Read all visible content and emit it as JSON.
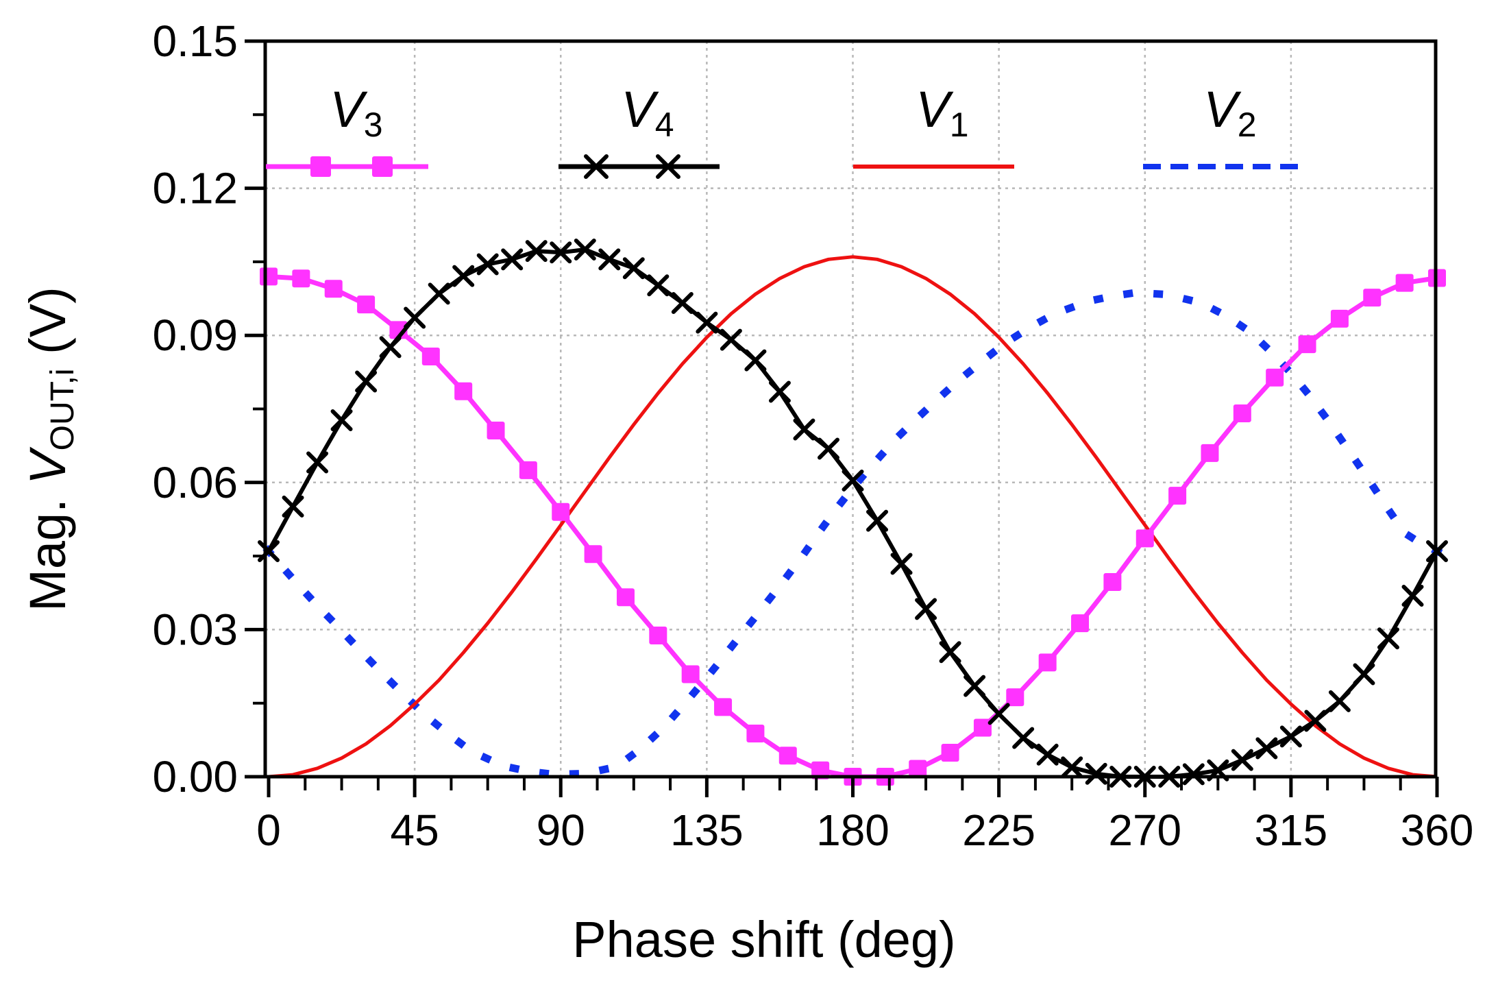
{
  "chart_data": {
    "type": "line",
    "title": "",
    "xlabel": "Phase shift (deg)",
    "ylabel": {
      "prefix": "Mag. ",
      "var": "V",
      "sub": "OUT,i",
      "suffix": " (V)"
    },
    "xlim": [
      0,
      360
    ],
    "ylim": [
      0,
      0.15
    ],
    "xticks": [
      0,
      45,
      90,
      135,
      180,
      225,
      270,
      315,
      360
    ],
    "xtick_labels": [
      "0",
      "45",
      "90",
      "135",
      "180",
      "225",
      "270",
      "315",
      "360"
    ],
    "yticks": [
      0,
      0.03,
      0.06,
      0.09,
      0.12,
      0.15
    ],
    "ytick_labels": [
      "0.00",
      "0.03",
      "0.06",
      "0.09",
      "0.12",
      "0.15"
    ],
    "grid": true,
    "legend_placement": "top, horizontal inside plot",
    "series": [
      {
        "name": "V3",
        "label_main": "V",
        "label_sub": "3",
        "color": "#ff33ff",
        "style": "solid",
        "marker": "square",
        "x": [
          0,
          10,
          20,
          30,
          40,
          50,
          60,
          70,
          80,
          90,
          100,
          110,
          120,
          130,
          140,
          150,
          160,
          170,
          180,
          190,
          200,
          210,
          220,
          230,
          240,
          250,
          260,
          270,
          280,
          290,
          300,
          310,
          320,
          330,
          340,
          350,
          360
        ],
        "values": [
          0.102,
          0.1016,
          0.0995,
          0.0963,
          0.0911,
          0.0857,
          0.0786,
          0.0706,
          0.0625,
          0.054,
          0.0454,
          0.0366,
          0.0288,
          0.0209,
          0.0142,
          0.0088,
          0.0043,
          0.0013,
          0.0,
          0.0,
          0.0016,
          0.0049,
          0.01,
          0.0162,
          0.0233,
          0.0313,
          0.0397,
          0.0486,
          0.0573,
          0.066,
          0.0741,
          0.0814,
          0.0882,
          0.0934,
          0.0977,
          0.1007,
          0.1017
        ]
      },
      {
        "name": "V4",
        "label_main": "V",
        "label_sub": "4",
        "color": "#000000",
        "style": "solid",
        "marker": "x",
        "x": [
          0,
          7.5,
          15,
          22.5,
          30,
          37.5,
          45,
          52.5,
          60,
          67.5,
          75,
          82.5,
          90,
          97.5,
          105,
          112.5,
          120,
          127.5,
          135,
          142.5,
          150,
          157.5,
          165,
          172.5,
          180,
          187.5,
          195,
          202.5,
          210,
          217.5,
          225,
          232.5,
          240,
          247.5,
          255,
          262.5,
          270,
          277.5,
          285,
          292.5,
          300,
          307.5,
          315,
          322.5,
          330,
          337.5,
          345,
          352.5,
          360
        ],
        "values": [
          0.046,
          0.0551,
          0.0641,
          0.0727,
          0.0806,
          0.0876,
          0.0936,
          0.0985,
          0.1021,
          0.1045,
          0.1055,
          0.1072,
          0.1069,
          0.1075,
          0.1055,
          0.1037,
          0.1002,
          0.0966,
          0.0926,
          0.0891,
          0.0849,
          0.0785,
          0.0708,
          0.0669,
          0.0604,
          0.0522,
          0.0434,
          0.0342,
          0.0254,
          0.0185,
          0.0128,
          0.0079,
          0.0045,
          0.0019,
          0.0006,
          0.0,
          0.0,
          0.0,
          0.0005,
          0.0013,
          0.0034,
          0.0058,
          0.0082,
          0.0114,
          0.0154,
          0.0209,
          0.0282,
          0.0369,
          0.046
        ]
      },
      {
        "name": "V1",
        "label_main": "V",
        "label_sub": "1",
        "color": "#ee1111",
        "style": "solid",
        "marker": "none",
        "x": [
          0,
          7.5,
          15,
          22.5,
          30,
          37.5,
          45,
          52.5,
          60,
          67.5,
          75,
          82.5,
          90,
          97.5,
          105,
          112.5,
          120,
          127.5,
          135,
          142.5,
          150,
          157.5,
          165,
          172.5,
          180,
          187.5,
          195,
          202.5,
          210,
          217.5,
          225,
          232.5,
          240,
          247.5,
          255,
          262.5,
          270,
          277.5,
          285,
          292.5,
          300,
          307.5,
          315,
          322.5,
          330,
          337.5,
          345,
          352.5,
          360
        ],
        "values": [
          0.0,
          0.0004,
          0.0017,
          0.0038,
          0.0067,
          0.0104,
          0.0148,
          0.0197,
          0.0253,
          0.0313,
          0.0377,
          0.0444,
          0.0513,
          0.0582,
          0.0651,
          0.0718,
          0.0782,
          0.0842,
          0.0896,
          0.0944,
          0.0984,
          0.1016,
          0.104,
          0.1055,
          0.106,
          0.1055,
          0.104,
          0.1016,
          0.0984,
          0.0944,
          0.0896,
          0.0842,
          0.0782,
          0.0718,
          0.0651,
          0.0582,
          0.0513,
          0.0444,
          0.0377,
          0.0313,
          0.0253,
          0.0197,
          0.0148,
          0.0104,
          0.0067,
          0.0038,
          0.0017,
          0.0004,
          0.0
        ]
      },
      {
        "name": "V2",
        "label_main": "V",
        "label_sub": "2",
        "color": "#1133ee",
        "style": "dashed",
        "marker": "none",
        "x": [
          0,
          5,
          10,
          15,
          20,
          25,
          30,
          35,
          40,
          45,
          50,
          55,
          60,
          65,
          70,
          75,
          80,
          85,
          90,
          95,
          100,
          105,
          110,
          115,
          120,
          125,
          130,
          135,
          140,
          145,
          150,
          155,
          160,
          165,
          170,
          175,
          180,
          185,
          190,
          195,
          200,
          205,
          210,
          215,
          220,
          225,
          230,
          235,
          240,
          245,
          250,
          255,
          260,
          265,
          270,
          275,
          280,
          285,
          290,
          295,
          300,
          305,
          310,
          315,
          320,
          325,
          330,
          335,
          340,
          345,
          350,
          355,
          360
        ],
        "values": [
          0.046,
          0.0422,
          0.0385,
          0.0349,
          0.0315,
          0.028,
          0.0245,
          0.0211,
          0.0178,
          0.0146,
          0.0116,
          0.0089,
          0.0064,
          0.0044,
          0.0029,
          0.0018,
          0.0011,
          0.0007,
          0.0005,
          0.0006,
          0.001,
          0.0017,
          0.0034,
          0.0059,
          0.009,
          0.0125,
          0.0163,
          0.0202,
          0.0243,
          0.0285,
          0.0326,
          0.0368,
          0.0411,
          0.0455,
          0.0502,
          0.0547,
          0.0589,
          0.0628,
          0.0665,
          0.07,
          0.0732,
          0.0763,
          0.0793,
          0.0821,
          0.0848,
          0.0874,
          0.0897,
          0.0918,
          0.0936,
          0.0951,
          0.0963,
          0.0973,
          0.098,
          0.0985,
          0.0986,
          0.0984,
          0.0978,
          0.097,
          0.0957,
          0.094,
          0.0918,
          0.0891,
          0.0859,
          0.0823,
          0.0783,
          0.0739,
          0.0692,
          0.0644,
          0.0595,
          0.0545,
          0.0497,
          0.0476,
          0.046
        ]
      }
    ]
  }
}
